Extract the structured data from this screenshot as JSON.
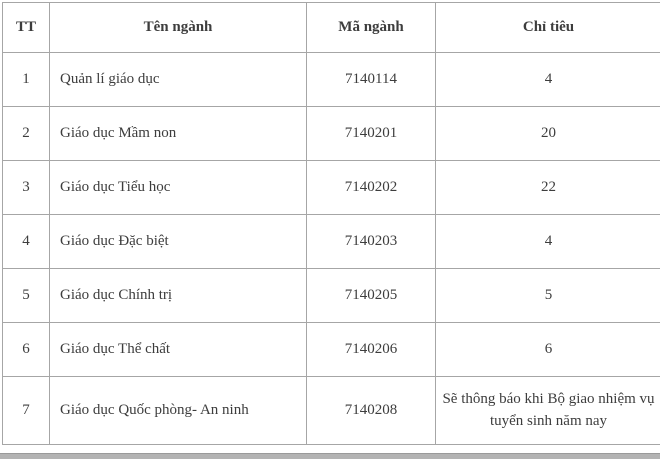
{
  "colors": {
    "background": "#ffffff",
    "border": "#a6a6a6",
    "text": "#3d3d3d",
    "bottom_bar": "#b3b3b3"
  },
  "table": {
    "columns": [
      {
        "key": "tt",
        "label": "TT"
      },
      {
        "key": "ten_nganh",
        "label": "Tên ngành"
      },
      {
        "key": "ma_nganh",
        "label": "Mã ngành"
      },
      {
        "key": "chi_tieu",
        "label": "Chỉ tiêu"
      }
    ],
    "rows": [
      {
        "tt": "1",
        "ten_nganh": "Quản lí giáo dục",
        "ma_nganh": "7140114",
        "chi_tieu": "4"
      },
      {
        "tt": "2",
        "ten_nganh": "Giáo dục Mầm non",
        "ma_nganh": "7140201",
        "chi_tieu": "20"
      },
      {
        "tt": "3",
        "ten_nganh": "Giáo dục Tiểu học",
        "ma_nganh": "7140202",
        "chi_tieu": "22"
      },
      {
        "tt": "4",
        "ten_nganh": "Giáo dục Đặc biệt",
        "ma_nganh": "7140203",
        "chi_tieu": "4"
      },
      {
        "tt": "5",
        "ten_nganh": "Giáo dục Chính trị",
        "ma_nganh": "7140205",
        "chi_tieu": "5"
      },
      {
        "tt": "6",
        "ten_nganh": "Giáo dục Thể chất",
        "ma_nganh": "7140206",
        "chi_tieu": "6"
      },
      {
        "tt": "7",
        "ten_nganh": "Giáo dục Quốc phòng- An ninh",
        "ma_nganh": "7140208",
        "chi_tieu": "Sẽ thông báo khi Bộ giao nhiệm vụ\ntuyển sinh năm nay"
      }
    ]
  }
}
